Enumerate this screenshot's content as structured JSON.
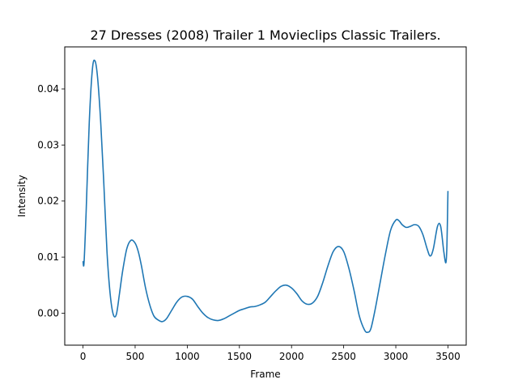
{
  "chart_data": {
    "type": "line",
    "title": "27 Dresses (2008) Trailer 1  Movieclips Classic Trailers.",
    "xlabel": "Frame",
    "ylabel": "Intensity",
    "xlim": [
      -175,
      3675
    ],
    "ylim": [
      -0.0057,
      0.0475
    ],
    "xticks": [
      0,
      500,
      1000,
      1500,
      2000,
      2500,
      3000,
      3500
    ],
    "yticks": [
      0.0,
      0.01,
      0.02,
      0.03,
      0.04
    ],
    "ytick_labels": [
      "0.00",
      "0.01",
      "0.02",
      "0.03",
      "0.04"
    ],
    "grid": false,
    "series": [
      {
        "color": "#1f77b4",
        "x": [
          0,
          10,
          30,
          60,
          90,
          115,
          140,
          170,
          200,
          230,
          260,
          290,
          320,
          350,
          380,
          420,
          460,
          500,
          530,
          560,
          600,
          640,
          680,
          720,
          760,
          800,
          850,
          900,
          950,
          1000,
          1050,
          1100,
          1150,
          1200,
          1250,
          1300,
          1350,
          1400,
          1450,
          1500,
          1550,
          1600,
          1650,
          1700,
          1750,
          1800,
          1850,
          1900,
          1950,
          2000,
          2050,
          2100,
          2150,
          2200,
          2250,
          2300,
          2350,
          2400,
          2450,
          2500,
          2550,
          2600,
          2650,
          2700,
          2730,
          2760,
          2800,
          2850,
          2900,
          2950,
          3000,
          3030,
          3060,
          3100,
          3140,
          3180,
          3220,
          3260,
          3300,
          3330,
          3360,
          3400,
          3430,
          3460,
          3480,
          3490,
          3500
        ],
        "y": [
          0.0093,
          0.009,
          0.018,
          0.034,
          0.0435,
          0.045,
          0.042,
          0.034,
          0.023,
          0.011,
          0.0035,
          -0.0002,
          -0.0002,
          0.0035,
          0.0075,
          0.0115,
          0.013,
          0.0125,
          0.011,
          0.0085,
          0.0045,
          0.0015,
          -0.0005,
          -0.0012,
          -0.0015,
          -0.001,
          0.0005,
          0.002,
          0.0029,
          0.003,
          0.0025,
          0.0012,
          0.0,
          -0.0008,
          -0.0012,
          -0.0013,
          -0.001,
          -0.0005,
          0.0,
          0.0005,
          0.0008,
          0.0011,
          0.0012,
          0.0015,
          0.002,
          0.003,
          0.004,
          0.0048,
          0.005,
          0.0045,
          0.0035,
          0.0022,
          0.0016,
          0.0018,
          0.003,
          0.0055,
          0.0085,
          0.011,
          0.0119,
          0.011,
          0.008,
          0.004,
          -0.0005,
          -0.003,
          -0.0034,
          -0.0028,
          0.0005,
          0.0055,
          0.0105,
          0.0148,
          0.0166,
          0.0165,
          0.0158,
          0.0153,
          0.0155,
          0.0158,
          0.0155,
          0.014,
          0.0115,
          0.0102,
          0.0115,
          0.0155,
          0.0155,
          0.011,
          0.009,
          0.012,
          0.0218
        ]
      }
    ]
  }
}
